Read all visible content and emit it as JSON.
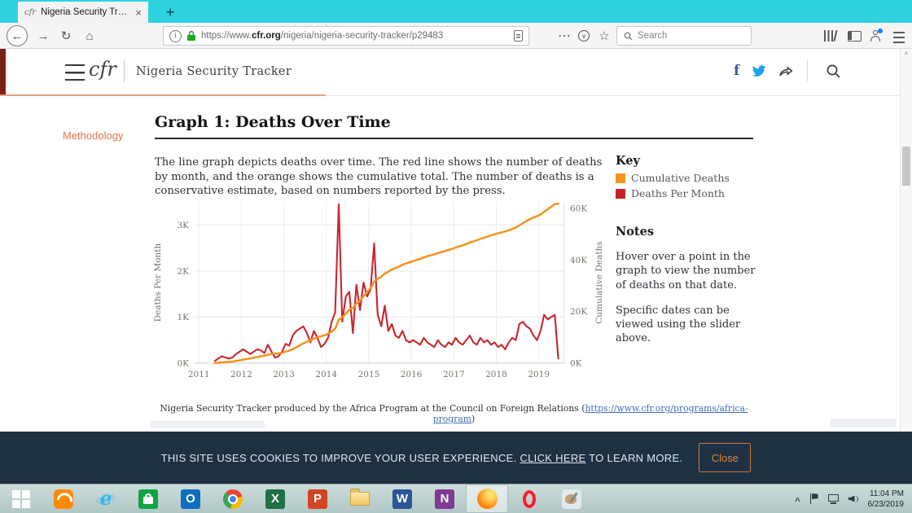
{
  "icons": {
    "close": "×",
    "plus": "+",
    "back": "←",
    "forward": "→",
    "reload": "↻",
    "home": "⌂",
    "more": "⋯",
    "star": "☆",
    "chevron_down": "∨",
    "info_letter": "i",
    "caret_up": "^",
    "favicon_glyph": "cfr"
  },
  "browser": {
    "tab_title": "Nigeria Security Tracker",
    "url_prefix": "https://www.",
    "url_domain": "cfr.org",
    "url_path": "/nigeria/nigeria-security-tracker/p29483",
    "search_placeholder": "Search"
  },
  "page": {
    "brand": "cfr",
    "site_title": "Nigeria Security Tracker",
    "methodology": "Methodology",
    "heading": "Graph 1: Deaths Over Time",
    "description": "The line graph depicts deaths over time. The red line shows the number of deaths by month, and the orange shows the cumulative total. The number of deaths is a conservative estimate, based on numbers reported by the press.",
    "key": {
      "title": "Key",
      "items": [
        {
          "label": "Cumulative Deaths",
          "color": "#f7941d"
        },
        {
          "label": "Deaths Per Month",
          "color": "#c2242a"
        }
      ]
    },
    "notes": {
      "title": "Notes",
      "p1": "Hover over a point in the graph to view the number of deaths on that date.",
      "p2": "Specific dates can be viewed using the slider above."
    },
    "footer": {
      "prefix": "Nigeria Security Tracker produced by the Africa Program at the Council on Foreign Relations (",
      "link": "https://www.cfr.org/programs/africa-program",
      "suffix": ")"
    }
  },
  "cookie_banner": {
    "text1": "THIS SITE USES COOKIES TO IMPROVE YOUR USER EXPERIENCE. ",
    "link": "CLICK HERE",
    "text2": " TO LEARN MORE.",
    "close_label": "Close"
  },
  "taskbar": {
    "clock_time": "11:04 PM",
    "clock_date": "6/23/2019"
  },
  "chart_data": {
    "type": "line",
    "title": "Deaths Over Time",
    "start_year_month": "2011-05",
    "x_domain": [
      2010.9,
      2019.6
    ],
    "x_ticks": [
      "2011",
      "2012",
      "2013",
      "2014",
      "2015",
      "2016",
      "2017",
      "2018",
      "2019"
    ],
    "left_axis": {
      "label": "Deaths Per Month",
      "ticks": [
        "0K",
        "1K",
        "2K",
        "3K"
      ],
      "tick_values": [
        0,
        1000,
        2000,
        3000
      ],
      "max": 3500
    },
    "right_axis": {
      "label": "Cumulative Deaths",
      "ticks": [
        "0K",
        "20K",
        "40K",
        "60K"
      ],
      "tick_values": [
        0,
        20000,
        40000,
        60000
      ],
      "max": 62500
    },
    "grid": true,
    "legend_position": "outside-right",
    "series": [
      {
        "name": "Deaths Per Month",
        "color": "#c5282f",
        "axis": "left",
        "values": [
          50,
          100,
          150,
          120,
          100,
          120,
          200,
          250,
          300,
          250,
          200,
          250,
          300,
          280,
          220,
          400,
          250,
          120,
          150,
          250,
          420,
          380,
          600,
          700,
          750,
          800,
          650,
          450,
          700,
          550,
          350,
          420,
          550,
          900,
          1100,
          3450,
          900,
          1450,
          1550,
          650,
          1700,
          1150,
          1750,
          1450,
          1600,
          2600,
          1050,
          800,
          1250,
          700,
          850,
          600,
          550,
          700,
          500,
          450,
          500,
          450,
          400,
          550,
          450,
          400,
          350,
          500,
          400,
          350,
          450,
          400,
          550,
          450,
          400,
          500,
          600,
          450,
          400,
          550,
          450,
          500,
          400,
          450,
          350,
          400,
          300,
          450,
          550,
          500,
          850,
          900,
          800,
          750,
          600,
          500,
          700,
          1050,
          950,
          1000,
          1050,
          100
        ]
      },
      {
        "name": "Cumulative Deaths",
        "color": "#f5921e",
        "axis": "right",
        "derived": "cumulative_of_series_0"
      }
    ]
  }
}
